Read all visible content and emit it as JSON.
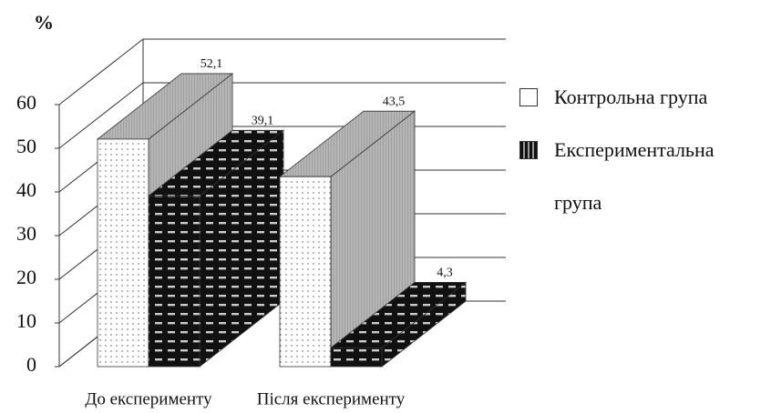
{
  "chart_data": {
    "type": "bar3d",
    "y_label": "%",
    "categories": [
      "До експерименту",
      "Після експерименту"
    ],
    "series": [
      {
        "name": "Контрольна група",
        "color": "#ffffff",
        "values": [
          52.1,
          43.5
        ],
        "value_labels": [
          "52,1",
          "43,5"
        ]
      },
      {
        "name": "Експериментальна група",
        "color": "#111111",
        "values": [
          39.1,
          4.3
        ],
        "value_labels": [
          "39,1",
          "4,3"
        ]
      }
    ],
    "ylim": [
      0,
      60
    ],
    "yticks": [
      0,
      10,
      20,
      30,
      40,
      50,
      60
    ],
    "grid": true,
    "legend": "right"
  }
}
